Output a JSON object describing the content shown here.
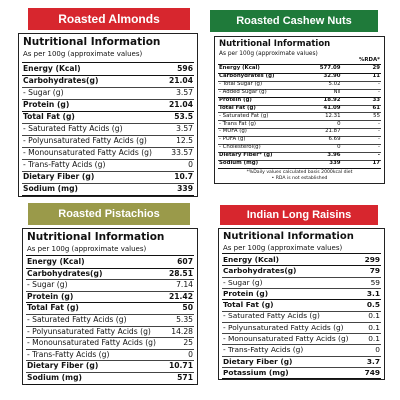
{
  "panels": [
    {
      "name": "Roasted  Almonds",
      "color": "#d7262e",
      "title": "Nutritional Information",
      "subtitle": "As per 100g  (approximate values)",
      "rows": [
        {
          "label": "Energy (Kcal)",
          "value": "596"
        },
        {
          "label": "Carbohydrates(g)",
          "value": "21.04"
        },
        {
          "label": "- Sugar (g)",
          "value": "3.57"
        },
        {
          "label": "Protein (g)",
          "value": "21.04"
        },
        {
          "label": "Total Fat (g)",
          "value": "53.5"
        },
        {
          "label": "- Saturated Fatty Acids (g)",
          "value": "3.57"
        },
        {
          "label": "- Polyunsaturated  Fatty Acids (g)",
          "value": "12.5"
        },
        {
          "label": "- Monounsaturated Fatty Acids (g)",
          "value": "33.57"
        },
        {
          "label": "- Trans-Fatty Acids (g)",
          "value": "0"
        },
        {
          "label": "Dietary Fiber (g)",
          "value": "10.7"
        },
        {
          "label": "Sodium (mg)",
          "value": "339"
        }
      ]
    },
    {
      "name": "Roasted Cashew Nuts",
      "color": "#1f7a3a",
      "title": "Nutritional Information",
      "subtitle": "As per 100g  (approximate values)",
      "rda_header": "%RDA*",
      "rows": [
        {
          "label": "Energy (Kcal)",
          "value": "577.09",
          "rda": "29"
        },
        {
          "label": "Carbohydrates (g)",
          "value": "32.90",
          "rda": "11"
        },
        {
          "label": "- Total Sugar (g)",
          "value": "5.02",
          "rda": "-"
        },
        {
          "label": "- Added Sugar (g)",
          "value": "Nil",
          "rda": "-"
        },
        {
          "label": "Protein (g)",
          "value": "18.92",
          "rda": "33"
        },
        {
          "label": "Total Fat (g)",
          "value": "41.09",
          "rda": "61"
        },
        {
          "label": "- Saturated Fat (g)",
          "value": "12.31",
          "rda": "55"
        },
        {
          "label": "- Trans Fat (g)",
          "value": "0",
          "rda": "-"
        },
        {
          "label": "- MUFA (g)",
          "value": "21.87",
          "rda": "-"
        },
        {
          "label": "- PUFA (g)",
          "value": "6.69",
          "rda": "-"
        },
        {
          "label": "- Cholesterol(g)",
          "value": "0",
          "rda": "-"
        },
        {
          "label": "Dietary Fiber* (g)",
          "value": "3.96",
          "rda": "-"
        },
        {
          "label": "Sodium (mg)",
          "value": "339",
          "rda": "17"
        }
      ],
      "notes": [
        "*%Daily values calculated basis 2000kcal diet",
        "• RDA is not established"
      ]
    },
    {
      "name": "Roasted Pistachios",
      "color": "#9a9a4a",
      "title": "Nutritional Information",
      "subtitle": "As per 100g  (approximate values)",
      "rows": [
        {
          "label": "Energy (Kcal)",
          "value": "607"
        },
        {
          "label": "Carbohydrates(g)",
          "value": "28.51"
        },
        {
          "label": "- Sugar (g)",
          "value": "7.14"
        },
        {
          "label": "Protein (g)",
          "value": "21.42"
        },
        {
          "label": "Total Fat (g)",
          "value": "50"
        },
        {
          "label": "- Saturated Fatty Acids (g)",
          "value": "5.35"
        },
        {
          "label": "- Polyunsaturated  Fatty Acids (g)",
          "value": "14.28"
        },
        {
          "label": "- Monounsaturated Fatty Acids (g)",
          "value": "25"
        },
        {
          "label": "- Trans-Fatty Acids (g)",
          "value": "0"
        },
        {
          "label": "Dietary Fiber (g)",
          "value": "10.71"
        },
        {
          "label": "Sodium (mg)",
          "value": "571"
        }
      ]
    },
    {
      "name": "Indian Long Raisins",
      "color": "#d7262e",
      "title": "Nutritional Information",
      "subtitle": "As per 100g  (approximate values)",
      "rows": [
        {
          "label": "Energy (Kcal)",
          "value": "299"
        },
        {
          "label": "Carbohydrates(g)",
          "value": "79"
        },
        {
          "label": "- Sugar (g)",
          "value": "59"
        },
        {
          "label": "Protein (g)",
          "value": "3.1"
        },
        {
          "label": "Total Fat (g)",
          "value": "0.5"
        },
        {
          "label": "- Saturated Fatty Acids (g)",
          "value": "0.1"
        },
        {
          "label": "- Polyunsaturated Fatty Acids (g)",
          "value": "0.1"
        },
        {
          "label": "- Monounsaturated Fatty Acids (g)",
          "value": "0.1"
        },
        {
          "label": "- Trans-Fatty Acids (g)",
          "value": "0"
        },
        {
          "label": "Dietary Fiber (g)",
          "value": "3.7"
        },
        {
          "label": "Potassium (mg)",
          "value": "749"
        }
      ]
    }
  ]
}
